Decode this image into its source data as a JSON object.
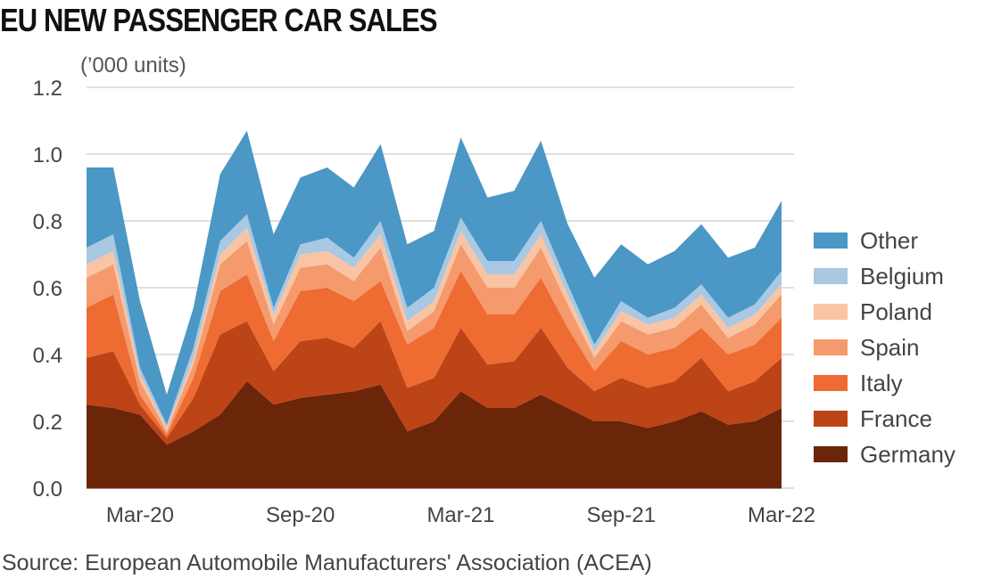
{
  "title": "EU NEW PASSENGER CAR SALES",
  "unit_label": "(’000 units)",
  "source": "Source: European Automobile Manufacturers' Association (ACEA)",
  "chart_data": {
    "type": "area",
    "stacked": true,
    "title": "EU NEW PASSENGER CAR SALES",
    "ylabel": "(’000 units)",
    "xlabel": "",
    "ylim": [
      0,
      1.2
    ],
    "yticks": [
      "0.0",
      "0.2",
      "0.4",
      "0.6",
      "0.8",
      "1.0",
      "1.2"
    ],
    "ytick_values": [
      0,
      0.2,
      0.4,
      0.6,
      0.8,
      1.0,
      1.2
    ],
    "x": [
      "Jan-20",
      "Feb-20",
      "Mar-20",
      "Apr-20",
      "May-20",
      "Jun-20",
      "Jul-20",
      "Aug-20",
      "Sep-20",
      "Oct-20",
      "Nov-20",
      "Dec-20",
      "Jan-21",
      "Feb-21",
      "Mar-21",
      "Apr-21",
      "May-21",
      "Jun-21",
      "Jul-21",
      "Aug-21",
      "Sep-21",
      "Oct-21",
      "Nov-21",
      "Dec-21",
      "Jan-22",
      "Feb-22",
      "Mar-22"
    ],
    "xtick_labels": [
      "Mar-20",
      "Sep-20",
      "Mar-21",
      "Sep-21",
      "Mar-22"
    ],
    "xtick_indices": [
      2,
      8,
      14,
      20,
      26
    ],
    "legend_position": "right",
    "series": [
      {
        "name": "Germany",
        "color": "#6b2509",
        "values": [
          0.25,
          0.24,
          0.22,
          0.13,
          0.17,
          0.22,
          0.32,
          0.25,
          0.27,
          0.28,
          0.29,
          0.31,
          0.17,
          0.2,
          0.29,
          0.24,
          0.24,
          0.28,
          0.24,
          0.2,
          0.2,
          0.18,
          0.2,
          0.23,
          0.19,
          0.2,
          0.24
        ]
      },
      {
        "name": "France",
        "color": "#bc4416",
        "values": [
          0.14,
          0.17,
          0.03,
          0.02,
          0.1,
          0.24,
          0.18,
          0.1,
          0.17,
          0.17,
          0.13,
          0.19,
          0.13,
          0.13,
          0.19,
          0.13,
          0.14,
          0.2,
          0.12,
          0.09,
          0.13,
          0.12,
          0.12,
          0.16,
          0.1,
          0.12,
          0.15
        ]
      },
      {
        "name": "Italy",
        "color": "#ee6b32",
        "values": [
          0.15,
          0.17,
          0.03,
          0.01,
          0.06,
          0.13,
          0.14,
          0.09,
          0.15,
          0.15,
          0.14,
          0.12,
          0.13,
          0.15,
          0.17,
          0.15,
          0.14,
          0.15,
          0.12,
          0.06,
          0.11,
          0.1,
          0.1,
          0.09,
          0.11,
          0.11,
          0.12
        ]
      },
      {
        "name": "Spain",
        "color": "#f49a6c",
        "values": [
          0.09,
          0.09,
          0.04,
          0.01,
          0.04,
          0.08,
          0.1,
          0.05,
          0.07,
          0.07,
          0.06,
          0.1,
          0.04,
          0.05,
          0.08,
          0.08,
          0.08,
          0.09,
          0.07,
          0.04,
          0.06,
          0.06,
          0.06,
          0.07,
          0.05,
          0.06,
          0.07
        ]
      },
      {
        "name": "Poland",
        "color": "#f9c4a4",
        "values": [
          0.04,
          0.04,
          0.02,
          0.01,
          0.02,
          0.03,
          0.04,
          0.03,
          0.04,
          0.04,
          0.04,
          0.04,
          0.03,
          0.03,
          0.04,
          0.04,
          0.04,
          0.04,
          0.03,
          0.02,
          0.03,
          0.03,
          0.03,
          0.03,
          0.03,
          0.03,
          0.03
        ]
      },
      {
        "name": "Belgium",
        "color": "#a8c8e3",
        "values": [
          0.05,
          0.05,
          0.02,
          0.01,
          0.03,
          0.04,
          0.04,
          0.02,
          0.03,
          0.04,
          0.03,
          0.04,
          0.04,
          0.04,
          0.04,
          0.04,
          0.04,
          0.04,
          0.03,
          0.02,
          0.03,
          0.02,
          0.03,
          0.03,
          0.03,
          0.03,
          0.04
        ]
      },
      {
        "name": "Other",
        "color": "#4b97c5",
        "values": [
          0.24,
          0.2,
          0.2,
          0.09,
          0.12,
          0.2,
          0.25,
          0.22,
          0.2,
          0.21,
          0.21,
          0.23,
          0.19,
          0.17,
          0.24,
          0.19,
          0.21,
          0.24,
          0.18,
          0.2,
          0.17,
          0.16,
          0.17,
          0.18,
          0.18,
          0.17,
          0.21
        ]
      }
    ]
  }
}
